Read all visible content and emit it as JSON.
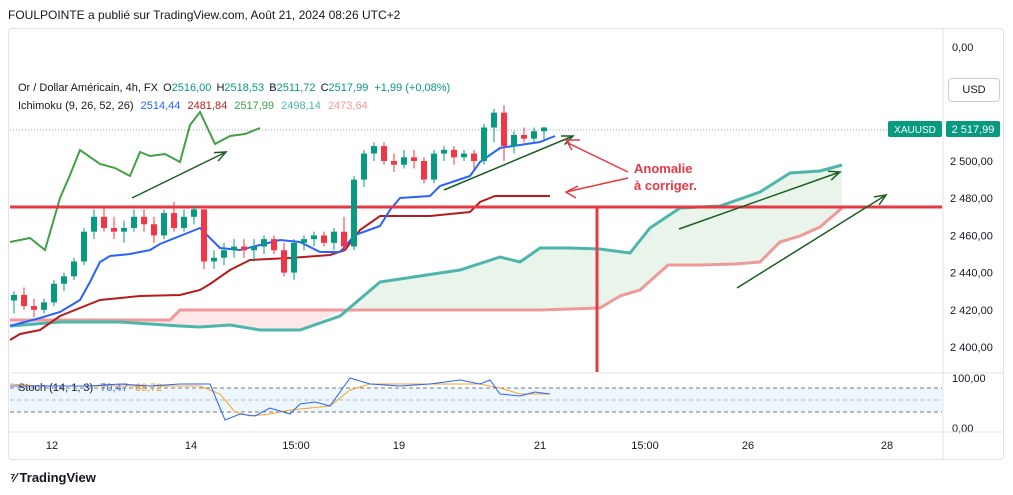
{
  "header": "FOULPOINTE a publié sur TradingView.com, Août 21, 2024 08:26 UTC+2",
  "legend": {
    "symbol": "Or / Dollar Américain, 4h, FX",
    "o_label": "O",
    "o_value": "2516,00",
    "h_label": "H",
    "h_value": "2518,53",
    "b_label": "B",
    "b_value": "2511,72",
    "c_label": "C",
    "c_value": "2517,99",
    "change": "+1,99 (+0,08%)"
  },
  "ichimoku": {
    "label": "Ichimoku (9, 26, 52, 26)",
    "values": [
      "2514,44",
      "2481,84",
      "2517,99",
      "2498,14",
      "2473,64"
    ],
    "colors": [
      "#2962ff",
      "#b71c1c",
      "#43a047",
      "#4db6ac",
      "#ef9a9a"
    ]
  },
  "stoch": {
    "label": "Stoch (14, 1, 3)",
    "k_value": "70,47",
    "d_value": "68,72",
    "k_color": "#2962ff",
    "d_color": "#f5a623"
  },
  "currency_button": "USD",
  "ticker_badge": {
    "symbol": "XAUUSD",
    "price": "2 517,99"
  },
  "annotation": "Anomalie\nà corriger.",
  "branding": "TradingView",
  "colors": {
    "up": "#089981",
    "down": "#f23645",
    "annotation": "#e53945",
    "arrow": "#1b5e20",
    "tenkan": "#2962ff",
    "kijun": "#b71c1c",
    "chikou": "#43a047",
    "span_a": "#4db6ac",
    "span_b": "#ef9a9a"
  },
  "chart_data": {
    "type": "candlestick",
    "price_axis": {
      "ticks": [
        2400,
        2420,
        2440,
        2460,
        2480,
        2500
      ],
      "tick_labels": [
        "2 400,00",
        "2 420,00",
        "2 440,00",
        "2 460,00",
        "2 480,00",
        "2 500,00"
      ],
      "top_label": "0,00",
      "range": [
        2390,
        2520
      ]
    },
    "stoch_axis": {
      "tick_labels": [
        "100,00",
        "0,00"
      ],
      "range": [
        0,
        100
      ],
      "bands": [
        80,
        20
      ]
    },
    "time_axis": {
      "labels": [
        "12",
        "14",
        "15:00",
        "19",
        "21",
        "15:00",
        "26",
        "28"
      ]
    },
    "horizontal_levels": [
      2475
    ],
    "candles": [
      [
        2425,
        2430,
        2418,
        2428
      ],
      [
        2428,
        2432,
        2420,
        2422
      ],
      [
        2422,
        2426,
        2416,
        2420
      ],
      [
        2420,
        2426,
        2418,
        2424
      ],
      [
        2424,
        2436,
        2422,
        2434
      ],
      [
        2434,
        2440,
        2430,
        2438
      ],
      [
        2438,
        2448,
        2436,
        2446
      ],
      [
        2446,
        2464,
        2444,
        2462
      ],
      [
        2462,
        2474,
        2458,
        2470
      ],
      [
        2470,
        2476,
        2462,
        2464
      ],
      [
        2464,
        2470,
        2458,
        2462
      ],
      [
        2462,
        2468,
        2456,
        2464
      ],
      [
        2464,
        2474,
        2462,
        2470
      ],
      [
        2470,
        2474,
        2462,
        2466
      ],
      [
        2466,
        2470,
        2456,
        2460
      ],
      [
        2460,
        2474,
        2458,
        2472
      ],
      [
        2472,
        2478,
        2462,
        2464
      ],
      [
        2464,
        2474,
        2462,
        2470
      ],
      [
        2470,
        2476,
        2466,
        2474
      ],
      [
        2474,
        2474,
        2442,
        2446
      ],
      [
        2446,
        2452,
        2442,
        2448
      ],
      [
        2448,
        2456,
        2444,
        2452
      ],
      [
        2452,
        2458,
        2448,
        2454
      ],
      [
        2454,
        2458,
        2448,
        2452
      ],
      [
        2452,
        2458,
        2446,
        2454
      ],
      [
        2454,
        2460,
        2450,
        2458
      ],
      [
        2458,
        2460,
        2450,
        2452
      ],
      [
        2452,
        2456,
        2438,
        2440
      ],
      [
        2440,
        2458,
        2436,
        2456
      ],
      [
        2456,
        2460,
        2452,
        2458
      ],
      [
        2458,
        2462,
        2454,
        2460
      ],
      [
        2460,
        2462,
        2454,
        2456
      ],
      [
        2456,
        2464,
        2452,
        2462
      ],
      [
        2462,
        2470,
        2452,
        2454
      ],
      [
        2454,
        2492,
        2452,
        2490
      ],
      [
        2490,
        2506,
        2486,
        2504
      ],
      [
        2504,
        2510,
        2500,
        2508
      ],
      [
        2508,
        2510,
        2498,
        2500
      ],
      [
        2500,
        2504,
        2494,
        2498
      ],
      [
        2498,
        2506,
        2496,
        2502
      ],
      [
        2502,
        2506,
        2496,
        2500
      ],
      [
        2500,
        2502,
        2488,
        2490
      ],
      [
        2490,
        2506,
        2488,
        2504
      ],
      [
        2504,
        2508,
        2500,
        2506
      ],
      [
        2506,
        2508,
        2498,
        2502
      ],
      [
        2502,
        2506,
        2500,
        2504
      ],
      [
        2504,
        2506,
        2496,
        2500
      ],
      [
        2500,
        2520,
        2498,
        2518
      ],
      [
        2518,
        2528,
        2510,
        2526
      ],
      [
        2526,
        2530,
        2500,
        2508
      ],
      [
        2508,
        2516,
        2504,
        2514
      ],
      [
        2514,
        2518,
        2510,
        2512
      ],
      [
        2512,
        2518,
        2510,
        2516
      ],
      [
        2516,
        2518.5,
        2511.7,
        2517.99
      ]
    ],
    "series": [
      {
        "name": "Ichimoku",
        "values": [
          2414,
          2418,
          2422,
          2426,
          2432,
          2440,
          2448,
          2454,
          2460,
          2464,
          2466,
          2466,
          2466,
          2468,
          2468,
          2468,
          2468,
          2468,
          2470,
          2470,
          2464,
          2460,
          2458,
          2458,
          2456,
          2456,
          2456,
          2456,
          2452,
          2452,
          2452,
          2456,
          2456,
          2456,
          2470,
          2480,
          2482,
          2484,
          2490,
          2490,
          2490,
          2490,
          2492,
          2496,
          2498,
          2500,
          2500,
          2500,
          2504,
          2508,
          2510,
          2510,
          2512,
          2514.44
        ]
      }
    ]
  }
}
